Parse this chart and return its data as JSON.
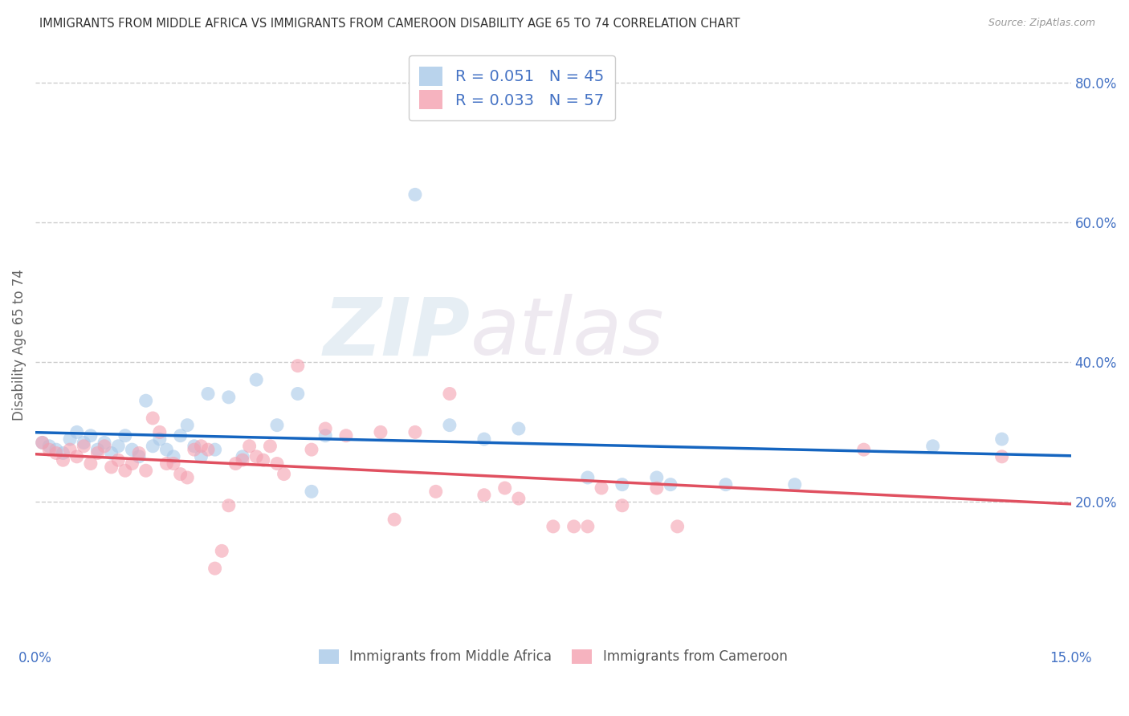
{
  "title": "IMMIGRANTS FROM MIDDLE AFRICA VS IMMIGRANTS FROM CAMEROON DISABILITY AGE 65 TO 74 CORRELATION CHART",
  "source": "Source: ZipAtlas.com",
  "ylabel": "Disability Age 65 to 74",
  "xlim": [
    0.0,
    0.15
  ],
  "ylim": [
    0.0,
    0.85
  ],
  "xtick_positions": [
    0.0,
    0.03,
    0.06,
    0.09,
    0.12,
    0.15
  ],
  "xtick_labels": [
    "0.0%",
    "",
    "",
    "",
    "",
    "15.0%"
  ],
  "yticks_right": [
    0.2,
    0.4,
    0.6,
    0.8
  ],
  "ytick_labels_right": [
    "20.0%",
    "40.0%",
    "60.0%",
    "80.0%"
  ],
  "legend1_label": "R = 0.051   N = 45",
  "legend2_label": "R = 0.033   N = 57",
  "legend1_color": "#a8c8e8",
  "legend2_color": "#f4a0b0",
  "trend1_color": "#1565C0",
  "trend2_color": "#e05060",
  "watermark_zip": "ZIP",
  "watermark_atlas": "atlas",
  "background_color": "#ffffff",
  "grid_color": "#cccccc",
  "title_color": "#333333",
  "axis_label_color": "#4472c4",
  "blue_scatter": [
    [
      0.001,
      0.285
    ],
    [
      0.002,
      0.28
    ],
    [
      0.003,
      0.275
    ],
    [
      0.004,
      0.27
    ],
    [
      0.005,
      0.29
    ],
    [
      0.006,
      0.3
    ],
    [
      0.007,
      0.285
    ],
    [
      0.008,
      0.295
    ],
    [
      0.009,
      0.275
    ],
    [
      0.01,
      0.285
    ],
    [
      0.011,
      0.27
    ],
    [
      0.012,
      0.28
    ],
    [
      0.013,
      0.295
    ],
    [
      0.014,
      0.275
    ],
    [
      0.015,
      0.265
    ],
    [
      0.016,
      0.345
    ],
    [
      0.017,
      0.28
    ],
    [
      0.018,
      0.29
    ],
    [
      0.019,
      0.275
    ],
    [
      0.02,
      0.265
    ],
    [
      0.021,
      0.295
    ],
    [
      0.022,
      0.31
    ],
    [
      0.023,
      0.28
    ],
    [
      0.024,
      0.265
    ],
    [
      0.025,
      0.355
    ],
    [
      0.026,
      0.275
    ],
    [
      0.028,
      0.35
    ],
    [
      0.03,
      0.265
    ],
    [
      0.032,
      0.375
    ],
    [
      0.035,
      0.31
    ],
    [
      0.038,
      0.355
    ],
    [
      0.04,
      0.215
    ],
    [
      0.042,
      0.295
    ],
    [
      0.055,
      0.64
    ],
    [
      0.06,
      0.31
    ],
    [
      0.065,
      0.29
    ],
    [
      0.07,
      0.305
    ],
    [
      0.08,
      0.235
    ],
    [
      0.085,
      0.225
    ],
    [
      0.09,
      0.235
    ],
    [
      0.092,
      0.225
    ],
    [
      0.1,
      0.225
    ],
    [
      0.11,
      0.225
    ],
    [
      0.13,
      0.28
    ],
    [
      0.14,
      0.29
    ]
  ],
  "pink_scatter": [
    [
      0.001,
      0.285
    ],
    [
      0.002,
      0.275
    ],
    [
      0.003,
      0.27
    ],
    [
      0.004,
      0.26
    ],
    [
      0.005,
      0.275
    ],
    [
      0.006,
      0.265
    ],
    [
      0.007,
      0.28
    ],
    [
      0.008,
      0.255
    ],
    [
      0.009,
      0.27
    ],
    [
      0.01,
      0.28
    ],
    [
      0.011,
      0.25
    ],
    [
      0.012,
      0.26
    ],
    [
      0.013,
      0.245
    ],
    [
      0.014,
      0.255
    ],
    [
      0.015,
      0.27
    ],
    [
      0.016,
      0.245
    ],
    [
      0.017,
      0.32
    ],
    [
      0.018,
      0.3
    ],
    [
      0.019,
      0.255
    ],
    [
      0.02,
      0.255
    ],
    [
      0.021,
      0.24
    ],
    [
      0.022,
      0.235
    ],
    [
      0.023,
      0.275
    ],
    [
      0.024,
      0.28
    ],
    [
      0.025,
      0.275
    ],
    [
      0.026,
      0.105
    ],
    [
      0.027,
      0.13
    ],
    [
      0.028,
      0.195
    ],
    [
      0.029,
      0.255
    ],
    [
      0.03,
      0.26
    ],
    [
      0.031,
      0.28
    ],
    [
      0.032,
      0.265
    ],
    [
      0.033,
      0.26
    ],
    [
      0.034,
      0.28
    ],
    [
      0.035,
      0.255
    ],
    [
      0.036,
      0.24
    ],
    [
      0.038,
      0.395
    ],
    [
      0.04,
      0.275
    ],
    [
      0.042,
      0.305
    ],
    [
      0.045,
      0.295
    ],
    [
      0.05,
      0.3
    ],
    [
      0.052,
      0.175
    ],
    [
      0.055,
      0.3
    ],
    [
      0.058,
      0.215
    ],
    [
      0.06,
      0.355
    ],
    [
      0.065,
      0.21
    ],
    [
      0.068,
      0.22
    ],
    [
      0.07,
      0.205
    ],
    [
      0.075,
      0.165
    ],
    [
      0.078,
      0.165
    ],
    [
      0.08,
      0.165
    ],
    [
      0.082,
      0.22
    ],
    [
      0.085,
      0.195
    ],
    [
      0.09,
      0.22
    ],
    [
      0.093,
      0.165
    ],
    [
      0.12,
      0.275
    ],
    [
      0.14,
      0.265
    ]
  ]
}
